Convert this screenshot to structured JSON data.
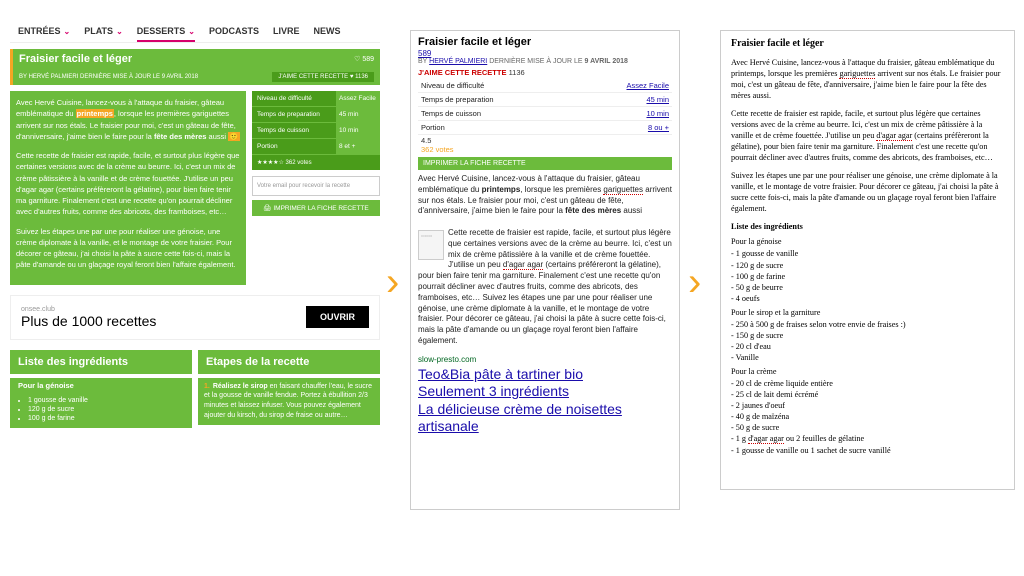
{
  "colors": {
    "green": "#6cbb3c",
    "darkgreen": "#4a9c1a",
    "orange": "#f5a623",
    "pink": "#d6006c",
    "link": "#1a0dab",
    "red": "#cc0000"
  },
  "nav": {
    "items": [
      "ENTRÉES",
      "PLATS",
      "DESSERTS",
      "PODCASTS",
      "LIVRE",
      "NEWS"
    ],
    "active_index": 2
  },
  "p1": {
    "title": "Fraisier facile et léger",
    "heart_count": "589",
    "byline": "BY HERVÉ PALMIERI   DERNIÈRE MISE À JOUR LE 9 AVRIL 2018",
    "like_btn": "J'AIME CETTE RECETTE",
    "like_n": "1136",
    "para1_a": "Avec Hervé Cuisine, lancez-vous à l'attaque du fraisier, gâteau emblématique du ",
    "para1_b": "printemps",
    "para1_c": ", lorsque les premières gariguettes arrivent sur nos étals. Le fraisier pour moi, c'est un gâteau de fête, d'anniversaire, j'aime bien le faire pour la ",
    "para1_d": "fête des mères",
    "para1_e": " aussi",
    "para2": "Cette recette de fraisier est rapide, facile, et surtout plus légère que certaines versions avec de la crème au beurre. Ici, c'est un mix de crème pâtissière à la vanille et de crème fouettée. J'utilise un peu d'agar agar (certains préfèreront la gélatine), pour bien faire tenir ma garniture. Finalement c'est une recette qu'on pourrait décliner avec d'autres fruits, comme des abricots, des framboises, etc…",
    "para3": "Suivez les étapes une par une pour réaliser une génoise, une crème diplomate à la vanille, et le montage de votre fraisier. Pour décorer ce gâteau, j'ai choisi la pâte à sucre cette fois-ci, mais la pâte d'amande ou un glaçage royal feront bien l'affaire également.",
    "stats": {
      "rows": [
        {
          "lab": "Niveau de difficulté",
          "val": "Assez Facile"
        },
        {
          "lab": "Temps de preparation",
          "val": "45 min"
        },
        {
          "lab": "Temps de cuisson",
          "val": "10 min"
        },
        {
          "lab": "Portion",
          "val": "8 et +"
        }
      ],
      "stars": "★★★★☆ 362 votes"
    },
    "email_placeholder": "Votre email pour recevoir la recette",
    "print_btn": "🖨 IMPRIMER LA FICHE RECETTE",
    "ad": {
      "domain": "onsee.club",
      "headline": "Plus de 1000 recettes",
      "btn": "OUVRIR"
    },
    "col1": {
      "hdr": "Liste des ingrédients",
      "sub": "Pour la génoise",
      "items": [
        "1 gousse de vanille",
        "120 g de sucre",
        "100 g de farine"
      ]
    },
    "col2": {
      "hdr": "Etapes de la recette",
      "step_num": "1.",
      "step_title": "Réalisez le sirop",
      "step_body": " en faisant chauffer l'eau, le sucre et la gousse de vanille fendue. Portez à ébullition 2/3 minutes et laissez infuser. Vous pouvez également ajouter du kirsch, du sirop de fraise ou autre…"
    }
  },
  "p2": {
    "title": "Fraisier facile et léger",
    "count": "589",
    "by_a": "BY ",
    "by_b": "HERVÉ PALMIERI",
    "by_c": " DERNIÈRE MISE À JOUR LE ",
    "by_d": "9 AVRIL 2018",
    "jaime": "J'AIME CETTE RECETTE",
    "jaime_n": "1136",
    "rows": [
      {
        "lab": "Niveau de difficulté",
        "val": "Assez Facile"
      },
      {
        "lab": "Temps de preparation",
        "val": "45 min"
      },
      {
        "lab": "Temps de cuisson",
        "val": "10 min"
      },
      {
        "lab": "Portion",
        "val": "8 ou +"
      }
    ],
    "rating": "4.5",
    "votes": "362 votes",
    "printbar": "IMPRIMER LA FICHE RECETTE",
    "body1": "Avec Hervé Cuisine, lancez-vous à l'attaque du fraisier, gâteau emblématique du printemps, lorsque les premières gariguettes arrivent sur nos étals. Le fraisier pour moi, c'est un gâteau de fête, d'anniversaire, j'aime bien le faire pour la fête des mères aussi",
    "body2": "Cette recette de fraisier est rapide, facile, et surtout plus légère que certaines versions avec de la crème au beurre. Ici, c'est un mix de crème pâtissière à la vanille et de crème fouettée. J'utilise un peu d'agar agar (certains préféreront la gélatine), pour bien faire tenir ma garniture. Finalement c'est une recette qu'on pourrait décliner avec d'autres fruits, comme des abricots, des framboises, etc…",
    "body3": "Suivez les étapes une par une pour réaliser une génoise, une crème diplomate à la vanille, et le montage de votre fraisier. Pour décorer ce gâteau, j'ai choisi la pâte à sucre cette fois-ci, mais la pâte d'amande ou un glaçage royal feront bien l'affaire également.",
    "adurl": "slow-presto.com",
    "adlines": [
      "Teo&Bia pâte à tartiner bio",
      "Seulement 3 ingrédients",
      "La délicieuse crème de noisettes",
      "artisanale"
    ]
  },
  "p3": {
    "title": "Fraisier facile et léger",
    "p1": "Avec Hervé Cuisine, lancez-vous à l'attaque du fraisier, gâteau emblématique du printemps, lorsque les premières gariguettes arrivent sur nos étals. Le fraisier pour moi, c'est un gâteau de fête, d'anniversaire, j'aime bien le faire pour la fête des mères aussi.",
    "p2": "Cette recette de fraisier est rapide, facile, et surtout plus légère que certaines versions avec de la crème au beurre. Ici, c'est un mix de crème pâtissière à la vanille et de crème fouettée. J'utilise un peu d'agar agar (certains préfèreront la gélatine), pour bien faire tenir ma garniture. Finalement c'est une recette qu'on pourrait décliner avec d'autres fruits, comme des abricots, des framboises, etc…",
    "p3": "Suivez les étapes une par une pour réaliser une génoise, une crème diplomate à la vanille, et le montage de votre fraisier. Pour décorer ce gâteau, j'ai choisi la pâte à sucre cette fois-ci, mais la pâte d'amande ou un glaçage royal feront bien l'affaire également.",
    "list_hdr": "Liste des ingrédients",
    "groups": [
      {
        "sub": "Pour la génoise",
        "items": [
          "- 1 gousse de vanille",
          "- 120 g de sucre",
          "- 100 g de farine",
          "- 50 g de beurre",
          "- 4 oeufs"
        ]
      },
      {
        "sub": "Pour le sirop et la garniture",
        "items": [
          "- 250 à 500 g de fraises selon votre envie de fraises :)",
          "- 150 g de sucre",
          "- 20 cl d'eau",
          "- Vanille"
        ]
      },
      {
        "sub": "Pour la crème",
        "items": [
          "- 20 cl de crème liquide entière",
          "- 25 cl de lait demi écrémé",
          "- 2 jaunes d'oeuf",
          "- 40 g de maïzéna",
          "- 50 g de sucre",
          "- 1 g d'agar agar ou 2 feuilles de gélatine",
          "- 1 gousse de vanille ou 1 sachet de sucre vanillé"
        ]
      }
    ]
  }
}
